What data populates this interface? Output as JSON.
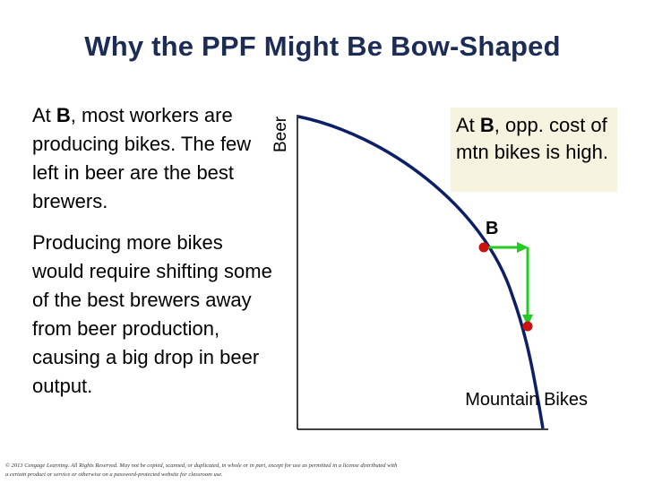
{
  "title": "Why the PPF Might Be Bow-Shaped",
  "left_text": {
    "block1": {
      "prefix": "At ",
      "bold": "B",
      "suffix": ", most workers are producing bikes. The few left in beer are the best brewers."
    },
    "block2": "Producing more bikes would require shifting some of the best brewers away from beer production, causing a big drop in beer output."
  },
  "callout": {
    "prefix": "At ",
    "bold": "B",
    "suffix": ", opp. cost of mtn bikes is high."
  },
  "graph": {
    "y_axis_label": "Beer",
    "x_axis_label": "Mountain Bikes",
    "point_label": "B",
    "curve_color": "#0d1f66",
    "point_color": "#cc1111",
    "arrow_color": "#22cc22"
  },
  "copyright": "© 2013 Cengage Learning. All Rights Reserved. May not be copied, scanned, or duplicated, in whole or in part, except for use as permitted in a license distributed with a certain product or service or otherwise on a password-protected website for classroom use."
}
